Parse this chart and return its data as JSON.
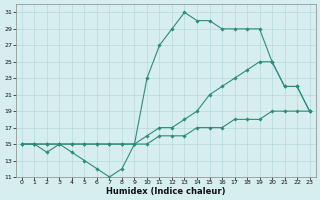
{
  "xlabel": "Humidex (Indice chaleur)",
  "bg_color": "#d6eef0",
  "grid_color": "#b8d8dc",
  "line_color": "#2e8b7a",
  "xlim": [
    -0.5,
    23.5
  ],
  "ylim": [
    11,
    32
  ],
  "yticks": [
    11,
    13,
    15,
    17,
    19,
    21,
    23,
    25,
    27,
    29,
    31
  ],
  "xticks": [
    0,
    1,
    2,
    3,
    4,
    5,
    6,
    7,
    8,
    9,
    10,
    11,
    12,
    13,
    14,
    15,
    16,
    17,
    18,
    19,
    20,
    21,
    22,
    23
  ],
  "line1_x": [
    0,
    1,
    2,
    3,
    4,
    5,
    6,
    7,
    8,
    9,
    10,
    11,
    12,
    13,
    14,
    15,
    16,
    17,
    18,
    19,
    20,
    21,
    22,
    23
  ],
  "line1_y": [
    15,
    15,
    14,
    15,
    14,
    13,
    12,
    11,
    12,
    15,
    23,
    27,
    29,
    31,
    30,
    30,
    29,
    29,
    29,
    29,
    25,
    22,
    22,
    19
  ],
  "line2_x": [
    0,
    1,
    2,
    3,
    4,
    5,
    6,
    7,
    8,
    9,
    10,
    11,
    12,
    13,
    14,
    15,
    16,
    17,
    18,
    19,
    20,
    21,
    22,
    23
  ],
  "line2_y": [
    15,
    15,
    15,
    15,
    15,
    15,
    15,
    15,
    15,
    15,
    16,
    17,
    17,
    18,
    19,
    21,
    22,
    23,
    24,
    25,
    25,
    22,
    22,
    19
  ],
  "line3_x": [
    0,
    1,
    2,
    3,
    4,
    5,
    6,
    7,
    8,
    9,
    10,
    11,
    12,
    13,
    14,
    15,
    16,
    17,
    18,
    19,
    20,
    21,
    22,
    23
  ],
  "line3_y": [
    15,
    15,
    15,
    15,
    15,
    15,
    15,
    15,
    15,
    15,
    15,
    16,
    16,
    16,
    17,
    17,
    17,
    18,
    18,
    18,
    19,
    19,
    19,
    19
  ]
}
